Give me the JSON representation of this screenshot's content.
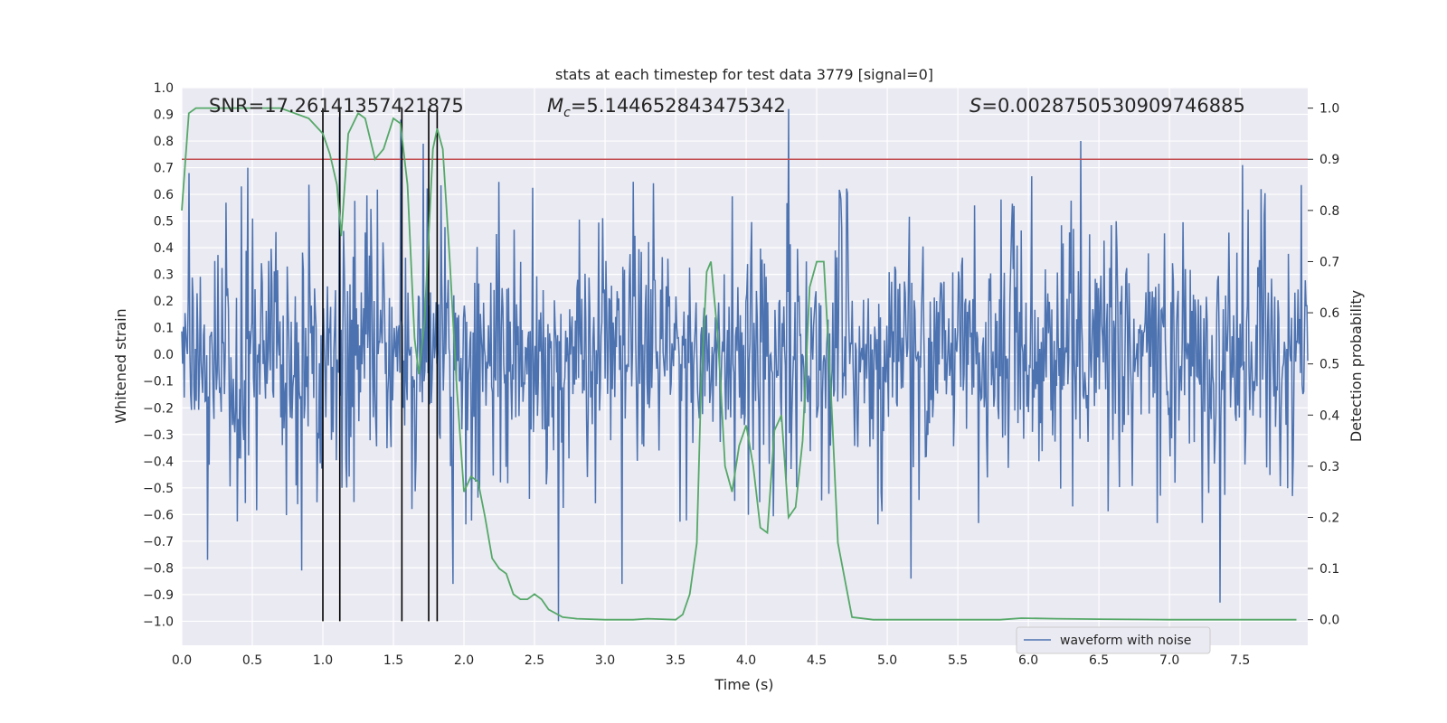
{
  "chart_data": {
    "type": "line",
    "title": "stats at each timestep for test data 3779 [signal=0]",
    "xlabel": "Time (s)",
    "ylabel": "Whitened strain",
    "y2label": "Detection probability",
    "xlim": [
      0.0,
      7.98
    ],
    "ylim": [
      -1.09,
      1.0
    ],
    "y2lim": [
      -0.05,
      1.04
    ],
    "xticks": [
      "0.0",
      "0.5",
      "1.0",
      "1.5",
      "2.0",
      "2.5",
      "3.0",
      "3.5",
      "4.0",
      "4.5",
      "5.0",
      "5.5",
      "6.0",
      "6.5",
      "7.0",
      "7.5"
    ],
    "xtick_values": [
      0.0,
      0.5,
      1.0,
      1.5,
      2.0,
      2.5,
      3.0,
      3.5,
      4.0,
      4.5,
      5.0,
      5.5,
      6.0,
      6.5,
      7.0,
      7.5
    ],
    "yticks": [
      "1.0",
      "0.9",
      "0.8",
      "0.7",
      "0.6",
      "0.5",
      "0.4",
      "0.3",
      "0.2",
      "0.1",
      "0.0",
      "−0.1",
      "−0.2",
      "−0.3",
      "−0.4",
      "−0.5",
      "−0.6",
      "−0.7",
      "−0.8",
      "−0.9",
      "−1.0"
    ],
    "ytick_values": [
      1.0,
      0.9,
      0.8,
      0.7,
      0.6,
      0.5,
      0.4,
      0.3,
      0.2,
      0.1,
      0.0,
      -0.1,
      -0.2,
      -0.3,
      -0.4,
      -0.5,
      -0.6,
      -0.7,
      -0.8,
      -0.9,
      -1.0
    ],
    "y2ticks": [
      "1.0",
      "0.9",
      "0.8",
      "0.7",
      "0.6",
      "0.5",
      "0.4",
      "0.3",
      "0.2",
      "0.1",
      "0.0"
    ],
    "y2tick_values": [
      1.0,
      0.9,
      0.8,
      0.7,
      0.6,
      0.5,
      0.4,
      0.3,
      0.2,
      0.1,
      0.0
    ],
    "annotations": {
      "snr": "SNR=17.26141357421875",
      "mc_symbol": "M",
      "mc_sub": "c",
      "mc_value": "=5.144652843475342",
      "s_symbol": "S",
      "s_value": "=0.0028750530909746885"
    },
    "threshold": {
      "y2": 0.9,
      "color": "#c44e52"
    },
    "vertical_markers": [
      1.0,
      1.12,
      1.56,
      1.75,
      1.81
    ],
    "series": [
      {
        "name": "waveform with noise",
        "axis": "left",
        "color": "#4c72b0",
        "envelope_seed": 3779,
        "samples": 1400,
        "spikes": [
          {
            "t": 0.05,
            "v": 0.68
          },
          {
            "t": 0.18,
            "v": -0.77
          },
          {
            "t": 0.42,
            "v": 0.63
          },
          {
            "t": 0.85,
            "v": -0.81
          },
          {
            "t": 1.12,
            "v": 0.89
          },
          {
            "t": 1.55,
            "v": 0.88
          },
          {
            "t": 1.71,
            "v": 0.79
          },
          {
            "t": 1.92,
            "v": -0.86
          },
          {
            "t": 2.67,
            "v": -1.0
          },
          {
            "t": 3.12,
            "v": -0.86
          },
          {
            "t": 4.3,
            "v": 0.92
          },
          {
            "t": 5.17,
            "v": -0.84
          },
          {
            "t": 6.37,
            "v": 0.8
          },
          {
            "t": 7.36,
            "v": -0.93
          },
          {
            "t": 7.52,
            "v": 0.71
          }
        ]
      },
      {
        "name": "detection probability",
        "axis": "right",
        "color": "#55a868",
        "x": [
          0.0,
          0.05,
          0.1,
          0.2,
          0.3,
          0.5,
          0.7,
          0.8,
          0.9,
          1.0,
          1.05,
          1.1,
          1.13,
          1.18,
          1.25,
          1.3,
          1.37,
          1.43,
          1.5,
          1.55,
          1.6,
          1.65,
          1.68,
          1.72,
          1.75,
          1.78,
          1.81,
          1.85,
          1.9,
          1.95,
          2.0,
          2.05,
          2.1,
          2.15,
          2.2,
          2.25,
          2.3,
          2.35,
          2.4,
          2.45,
          2.5,
          2.55,
          2.6,
          2.7,
          2.8,
          3.0,
          3.2,
          3.3,
          3.4,
          3.5,
          3.55,
          3.6,
          3.65,
          3.68,
          3.72,
          3.75,
          3.8,
          3.85,
          3.9,
          3.95,
          4.0,
          4.05,
          4.1,
          4.15,
          4.2,
          4.25,
          4.3,
          4.35,
          4.4,
          4.45,
          4.5,
          4.55,
          4.6,
          4.65,
          4.75,
          4.9,
          5.0,
          5.5,
          5.8,
          5.95,
          6.2,
          6.5,
          7.0,
          7.5,
          7.9
        ],
        "y": [
          0.8,
          0.99,
          1.0,
          1.0,
          1.0,
          1.0,
          1.0,
          0.99,
          0.98,
          0.95,
          0.91,
          0.85,
          0.75,
          0.95,
          0.99,
          0.98,
          0.9,
          0.92,
          0.98,
          0.97,
          0.85,
          0.55,
          0.48,
          0.58,
          0.75,
          0.92,
          0.96,
          0.92,
          0.7,
          0.45,
          0.25,
          0.28,
          0.27,
          0.2,
          0.12,
          0.1,
          0.09,
          0.05,
          0.04,
          0.04,
          0.05,
          0.04,
          0.02,
          0.005,
          0.002,
          0.0,
          0.0,
          0.002,
          0.001,
          0.0,
          0.01,
          0.05,
          0.15,
          0.45,
          0.68,
          0.7,
          0.55,
          0.3,
          0.25,
          0.34,
          0.38,
          0.3,
          0.18,
          0.17,
          0.37,
          0.4,
          0.2,
          0.22,
          0.35,
          0.65,
          0.7,
          0.7,
          0.45,
          0.15,
          0.005,
          0.0,
          0.0,
          0.0,
          0.0,
          0.003,
          0.002,
          0.001,
          0.0,
          0.0,
          0.0
        ]
      }
    ],
    "legend": {
      "label": "waveform with noise",
      "placement": "lower-right"
    }
  }
}
